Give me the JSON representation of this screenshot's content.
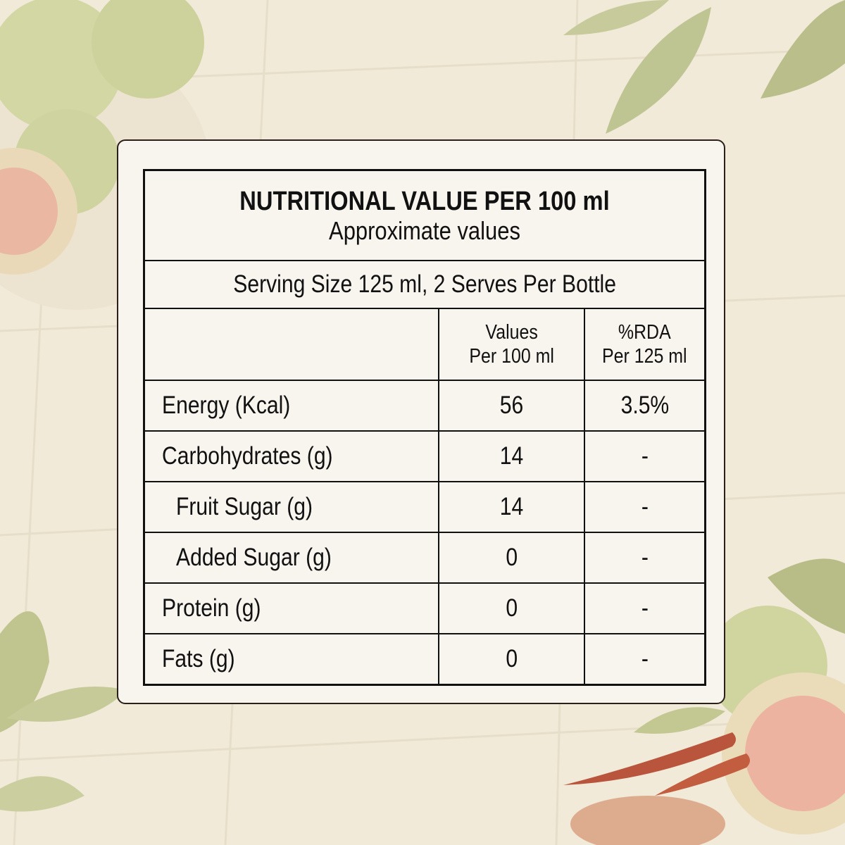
{
  "panel": {
    "title": "NUTRITIONAL VALUE PER 100 ml",
    "subtitle": "Approximate values",
    "serving": "Serving Size 125 ml, 2 Serves Per Bottle",
    "col_values": [
      "Values",
      "Per 100 ml"
    ],
    "col_rda": [
      "%RDA",
      "Per 125 ml"
    ]
  },
  "rows": [
    {
      "label": "Energy (Kcal)",
      "value": "56",
      "rda": "3.5%"
    },
    {
      "label": "Carbohydrates (g)",
      "value": "14",
      "rda": "-"
    },
    {
      "label": "Fruit Sugar (g)",
      "value": "14",
      "rda": "-"
    },
    {
      "label": "Added Sugar (g)",
      "value": "0",
      "rda": "-"
    },
    {
      "label": "Protein (g)",
      "value": "0",
      "rda": "-"
    },
    {
      "label": "Fats (g)",
      "value": "0",
      "rda": "-"
    }
  ],
  "colors": {
    "background": "#f1ead8",
    "card": "#f8f4ee",
    "border": "#111111",
    "guava": "#c9cf97",
    "leaf": "#b7bd86"
  }
}
